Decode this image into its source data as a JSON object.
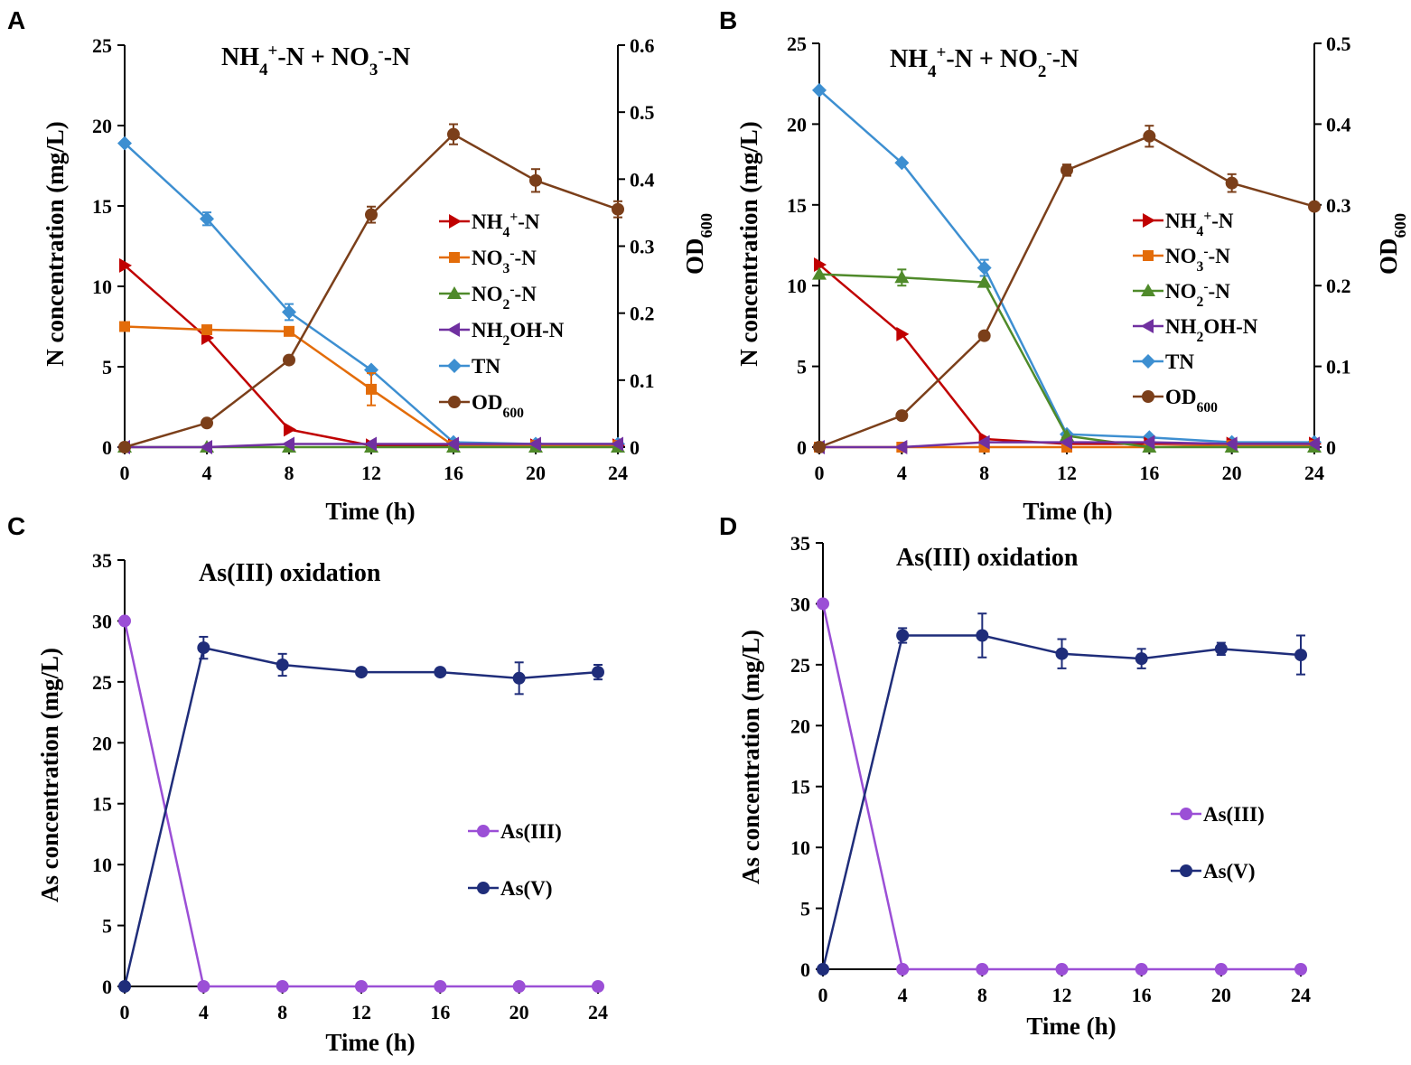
{
  "chart_data": [
    {
      "panel": "A",
      "type": "line",
      "title_parts": [
        {
          "t": "NH"
        },
        {
          "t": "4",
          "s": "sub"
        },
        {
          "t": "+",
          "s": "sup"
        },
        {
          "t": "-N + NO"
        },
        {
          "t": "3",
          "s": "sub"
        },
        {
          "t": "-",
          "s": "sup"
        },
        {
          "t": "-N"
        }
      ],
      "xlabel": "Time (h)",
      "ylabel": "N concentration (mg/L)",
      "y2label_parts": [
        {
          "t": "OD"
        },
        {
          "t": "600",
          "s": "sub"
        }
      ],
      "x": [
        0,
        4,
        8,
        12,
        16,
        20,
        24
      ],
      "xlim": [
        0,
        24
      ],
      "ylim": [
        0,
        25
      ],
      "yticks": [
        0,
        5,
        10,
        15,
        20,
        25
      ],
      "y2lim": [
        0,
        0.6
      ],
      "y2ticks": [
        0,
        0.1,
        0.2,
        0.3,
        0.4,
        0.5,
        0.6
      ],
      "series": [
        {
          "id": "nh4",
          "name_parts": [
            {
              "t": "NH"
            },
            {
              "t": "4",
              "s": "sub"
            },
            {
              "t": "+",
              "s": "sup"
            },
            {
              "t": "-N"
            }
          ],
          "marker": "triangle-right",
          "color": "#c00000",
          "axis": "left",
          "values": [
            11.3,
            6.8,
            1.1,
            0.1,
            0.1,
            0.1,
            0.1
          ]
        },
        {
          "id": "no3",
          "name_parts": [
            {
              "t": "NO"
            },
            {
              "t": "3",
              "s": "sub"
            },
            {
              "t": "-",
              "s": "sup"
            },
            {
              "t": "-N"
            }
          ],
          "marker": "square",
          "color": "#e36c09",
          "axis": "left",
          "values": [
            7.5,
            7.3,
            7.2,
            3.6,
            0.1,
            0.1,
            0.1
          ],
          "errors": [
            0,
            0,
            0,
            1.0,
            0,
            0,
            0
          ]
        },
        {
          "id": "no2",
          "name_parts": [
            {
              "t": "NO"
            },
            {
              "t": "2",
              "s": "sub"
            },
            {
              "t": "-",
              "s": "sup"
            },
            {
              "t": "-N"
            }
          ],
          "marker": "triangle-up",
          "color": "#4f8a2a",
          "axis": "left",
          "values": [
            0,
            0,
            0,
            0,
            0,
            0,
            0
          ]
        },
        {
          "id": "nh2oh",
          "name_parts": [
            {
              "t": "NH"
            },
            {
              "t": "2",
              "s": "sub"
            },
            {
              "t": "OH-N"
            }
          ],
          "marker": "triangle-left",
          "color": "#7030a0",
          "axis": "left",
          "values": [
            0,
            0,
            0.2,
            0.2,
            0.2,
            0.2,
            0.2
          ]
        },
        {
          "id": "tn",
          "name_parts": [
            {
              "t": "TN"
            }
          ],
          "marker": "diamond",
          "color": "#3d8fd1",
          "axis": "left",
          "values": [
            18.9,
            14.2,
            8.4,
            4.8,
            0.3,
            0.2,
            0.2
          ],
          "errors": [
            0,
            0.4,
            0.5,
            0,
            0,
            0,
            0
          ]
        },
        {
          "id": "od",
          "name_parts": [
            {
              "t": "OD"
            },
            {
              "t": "600",
              "s": "sub"
            }
          ],
          "marker": "circle",
          "color": "#7b3f1a",
          "axis": "right",
          "values": [
            0,
            0.036,
            0.13,
            0.347,
            0.467,
            0.398,
            0.355
          ],
          "errors": [
            0,
            0,
            0,
            0.012,
            0.015,
            0.017,
            0.012
          ]
        }
      ]
    },
    {
      "panel": "B",
      "type": "line",
      "title_parts": [
        {
          "t": "NH"
        },
        {
          "t": "4",
          "s": "sub"
        },
        {
          "t": "+",
          "s": "sup"
        },
        {
          "t": "-N + NO"
        },
        {
          "t": "2",
          "s": "sub"
        },
        {
          "t": "-",
          "s": "sup"
        },
        {
          "t": "-N"
        }
      ],
      "xlabel": "Time (h)",
      "ylabel": "N concentration (mg/L)",
      "y2label_parts": [
        {
          "t": "OD"
        },
        {
          "t": "600",
          "s": "sub"
        }
      ],
      "x": [
        0,
        4,
        8,
        12,
        16,
        20,
        24
      ],
      "xlim": [
        0,
        24
      ],
      "ylim": [
        0,
        25
      ],
      "yticks": [
        0,
        5,
        10,
        15,
        20,
        25
      ],
      "y2lim": [
        0,
        0.5
      ],
      "y2ticks": [
        0,
        0.1,
        0.2,
        0.3,
        0.4,
        0.5
      ],
      "series": [
        {
          "id": "nh4",
          "name_parts": [
            {
              "t": "NH"
            },
            {
              "t": "4",
              "s": "sub"
            },
            {
              "t": "+",
              "s": "sup"
            },
            {
              "t": "-N"
            }
          ],
          "marker": "triangle-right",
          "color": "#c00000",
          "axis": "left",
          "values": [
            11.3,
            7.0,
            0.5,
            0.2,
            0.2,
            0.2,
            0.2
          ]
        },
        {
          "id": "no3",
          "name_parts": [
            {
              "t": "NO"
            },
            {
              "t": "3",
              "s": "sub"
            },
            {
              "t": "-",
              "s": "sup"
            },
            {
              "t": "-N"
            }
          ],
          "marker": "square",
          "color": "#e36c09",
          "axis": "left",
          "values": [
            0,
            0,
            0,
            0,
            0,
            0.1,
            0.1
          ]
        },
        {
          "id": "no2",
          "name_parts": [
            {
              "t": "NO"
            },
            {
              "t": "2",
              "s": "sub"
            },
            {
              "t": "-",
              "s": "sup"
            },
            {
              "t": "-N"
            }
          ],
          "marker": "triangle-up",
          "color": "#4f8a2a",
          "axis": "left",
          "values": [
            10.7,
            10.5,
            10.2,
            0.7,
            0,
            0,
            0
          ],
          "errors": [
            0,
            0.5,
            0,
            0,
            0,
            0,
            0
          ]
        },
        {
          "id": "nh2oh",
          "name_parts": [
            {
              "t": "NH"
            },
            {
              "t": "2",
              "s": "sub"
            },
            {
              "t": "OH-N"
            }
          ],
          "marker": "triangle-left",
          "color": "#7030a0",
          "axis": "left",
          "values": [
            0,
            0,
            0.3,
            0.3,
            0.3,
            0.2,
            0.2
          ]
        },
        {
          "id": "tn",
          "name_parts": [
            {
              "t": "TN"
            }
          ],
          "marker": "diamond",
          "color": "#3d8fd1",
          "axis": "left",
          "values": [
            22.1,
            17.6,
            11.1,
            0.8,
            0.6,
            0.3,
            0.3
          ],
          "errors": [
            0,
            0,
            0.5,
            0,
            0,
            0,
            0
          ]
        },
        {
          "id": "od",
          "name_parts": [
            {
              "t": "OD"
            },
            {
              "t": "600",
              "s": "sub"
            }
          ],
          "marker": "circle",
          "color": "#7b3f1a",
          "axis": "right",
          "values": [
            0,
            0.039,
            0.138,
            0.343,
            0.385,
            0.327,
            0.298
          ],
          "errors": [
            0,
            0,
            0,
            0.007,
            0.013,
            0.011,
            0
          ]
        }
      ]
    },
    {
      "panel": "C",
      "type": "line",
      "title_parts": [
        {
          "t": "As(III)  oxidation"
        }
      ],
      "xlabel": "Time (h)",
      "ylabel": "As concentration (mg/L)",
      "x": [
        0,
        4,
        8,
        12,
        16,
        20,
        24
      ],
      "xlim": [
        0,
        24
      ],
      "ylim": [
        0,
        35
      ],
      "yticks": [
        0,
        5,
        10,
        15,
        20,
        25,
        30,
        35
      ],
      "series": [
        {
          "id": "as3",
          "name_parts": [
            {
              "t": "As(III)"
            }
          ],
          "marker": "circle",
          "color": "#9b4fd6",
          "axis": "left",
          "values": [
            30,
            0,
            0,
            0,
            0,
            0,
            0
          ]
        },
        {
          "id": "as5",
          "name_parts": [
            {
              "t": "As(V)"
            }
          ],
          "marker": "circle",
          "color": "#1f2d7a",
          "axis": "left",
          "values": [
            0,
            27.8,
            26.4,
            25.8,
            25.8,
            25.3,
            25.8
          ],
          "errors": [
            0,
            0.9,
            0.9,
            0,
            0,
            1.3,
            0.6
          ]
        }
      ]
    },
    {
      "panel": "D",
      "type": "line",
      "title_parts": [
        {
          "t": "As(III)  oxidation"
        }
      ],
      "xlabel": "Time (h)",
      "ylabel": "As concentration (mg/L)",
      "x": [
        0,
        4,
        8,
        12,
        16,
        20,
        24
      ],
      "xlim": [
        0,
        24
      ],
      "ylim": [
        0,
        35
      ],
      "yticks": [
        0,
        5,
        10,
        15,
        20,
        25,
        30,
        35
      ],
      "series": [
        {
          "id": "as3",
          "name_parts": [
            {
              "t": "As(III)"
            }
          ],
          "marker": "circle",
          "color": "#9b4fd6",
          "axis": "left",
          "values": [
            30,
            0,
            0,
            0,
            0,
            0,
            0
          ]
        },
        {
          "id": "as5",
          "name_parts": [
            {
              "t": "As(V)"
            }
          ],
          "marker": "circle",
          "color": "#1f2d7a",
          "axis": "left",
          "values": [
            0,
            27.4,
            27.4,
            25.9,
            25.5,
            26.3,
            25.8
          ],
          "errors": [
            0,
            0.6,
            1.8,
            1.2,
            0.8,
            0.5,
            1.6
          ]
        }
      ]
    }
  ]
}
